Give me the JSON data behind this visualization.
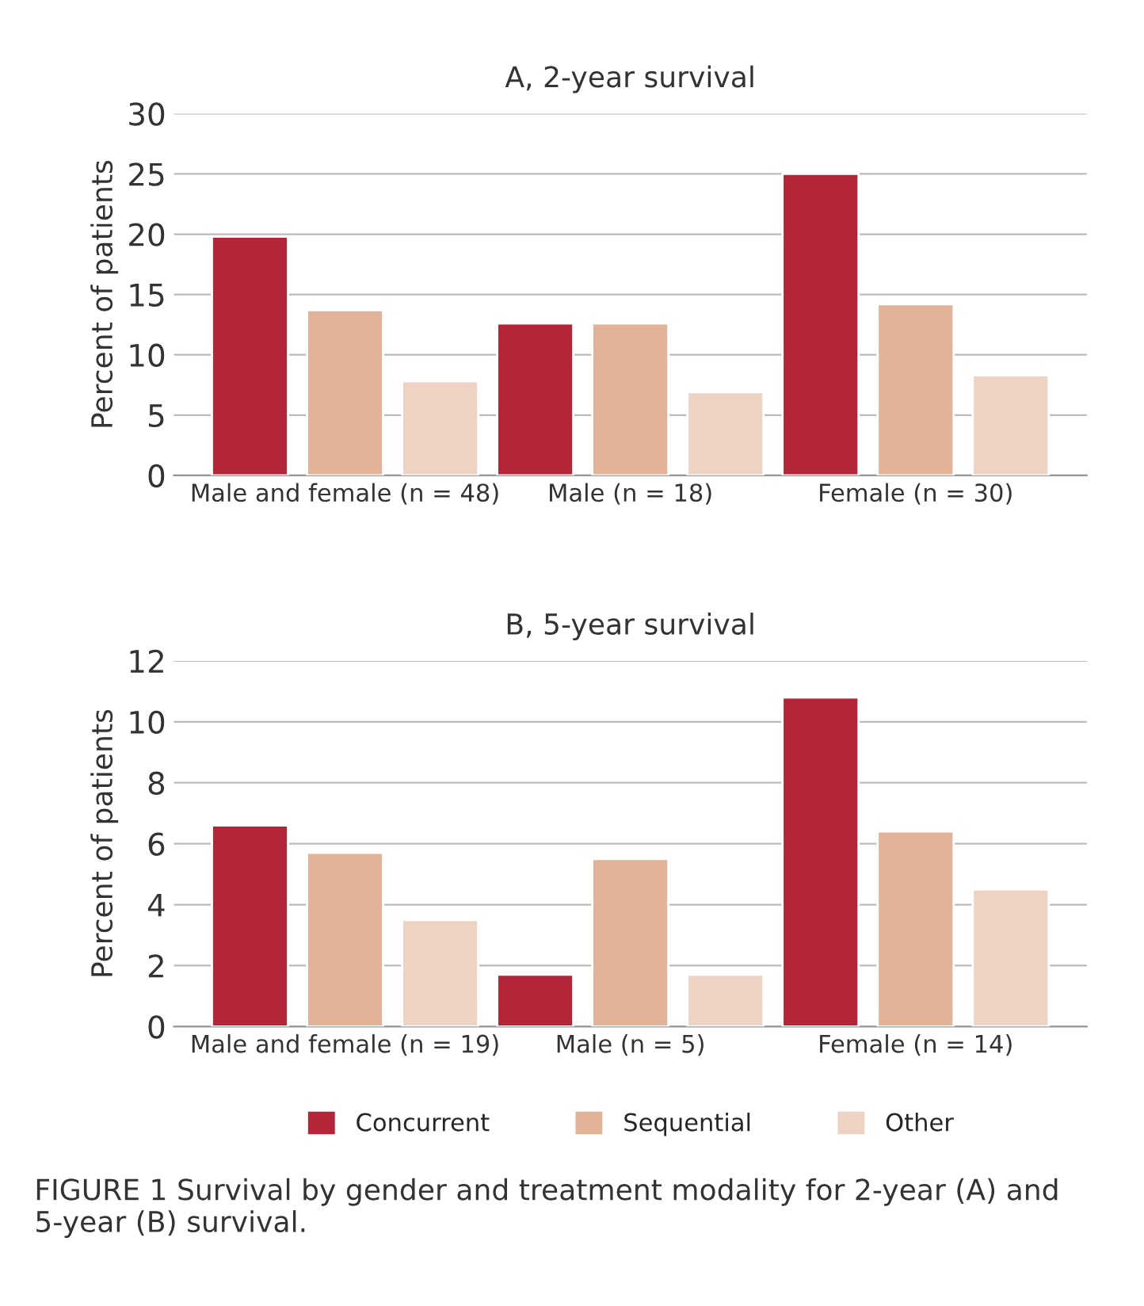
{
  "chart_data": [
    {
      "type": "bar",
      "title": "A, 2-year survival",
      "ylabel": "Percent of patients",
      "categories": [
        "Male and female (n = 48)",
        "Male (n = 18)",
        "Female (n = 30)"
      ],
      "series": [
        {
          "color": "#b5253a",
          "values": [
            19.8,
            12.6,
            25.0
          ]
        },
        {
          "color": "#e3b398",
          "values": [
            13.7,
            12.6,
            14.2
          ]
        },
        {
          "color": "#eed3c4",
          "values": [
            7.8,
            6.9,
            8.3
          ]
        }
      ],
      "ylim": [
        0,
        30
      ],
      "yticks": [
        0,
        5,
        10,
        15,
        20,
        25,
        30
      ],
      "grid": "y",
      "legend": false
    },
    {
      "type": "bar",
      "title": "B, 5-year survival",
      "ylabel": "Percent of patients",
      "categories": [
        "Male and female (n = 19)",
        "Male (n = 5)",
        "Female (n = 14)"
      ],
      "series": [
        {
          "name": "Concurrent",
          "color": "#b5253a",
          "values": [
            6.6,
            1.7,
            10.8
          ]
        },
        {
          "name": "Sequential",
          "color": "#e3b398",
          "values": [
            5.7,
            5.5,
            6.4
          ]
        },
        {
          "name": "Other",
          "color": "#eed3c4",
          "values": [
            3.5,
            1.7,
            4.5
          ]
        }
      ],
      "ylim": [
        0,
        12
      ],
      "yticks": [
        0,
        2,
        4,
        6,
        8,
        10,
        12
      ],
      "grid": "y",
      "legend": "bottom",
      "annotations": [
        "FIGURE 1 Survival by gender and treatment modality for 2-year (A) and 5-year (B) survival."
      ]
    }
  ]
}
